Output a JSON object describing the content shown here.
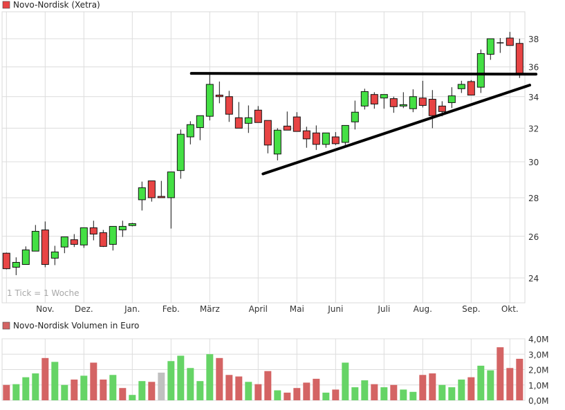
{
  "chart_data": [
    {
      "type": "candlestick",
      "title": "Novo-Nordisk (Xetra)",
      "note": "1 Tick = 1 Woche",
      "y_scale": "log",
      "ylim": [
        22.8,
        39
      ],
      "y_ticks": [
        "38",
        "36",
        "34",
        "32",
        "30",
        "28",
        "26",
        "24"
      ],
      "y_tick_values": [
        38,
        36,
        34,
        32,
        30,
        28,
        26,
        24
      ],
      "x_months": [
        {
          "label": "Nov.",
          "index": 4
        },
        {
          "label": "Dez.",
          "index": 8
        },
        {
          "label": "Jan.",
          "index": 13
        },
        {
          "label": "Feb.",
          "index": 17
        },
        {
          "label": "März",
          "index": 21
        },
        {
          "label": "April",
          "index": 26
        },
        {
          "label": "Mai",
          "index": 30
        },
        {
          "label": "Juni",
          "index": 34
        },
        {
          "label": "Juli",
          "index": 39
        },
        {
          "label": "Aug.",
          "index": 43
        },
        {
          "label": "Sep.",
          "index": 48
        },
        {
          "label": "Okt.",
          "index": 52
        }
      ],
      "colors": {
        "up": "#44e044",
        "down": "#e84444",
        "doji": "#000000",
        "legend": "#e84444"
      },
      "ohlc": [
        [
          25.17,
          25.2,
          24.4,
          24.43
        ],
        [
          24.5,
          24.97,
          24.13,
          24.73
        ],
        [
          24.63,
          25.5,
          24.63,
          25.33
        ],
        [
          25.27,
          26.57,
          25.27,
          26.25
        ],
        [
          26.32,
          26.75,
          24.5,
          24.63
        ],
        [
          24.93,
          25.53,
          24.6,
          25.23
        ],
        [
          25.47,
          25.97,
          25.17,
          25.97
        ],
        [
          25.83,
          26.11,
          25.47,
          25.6
        ],
        [
          25.57,
          26.43,
          25.43,
          26.43
        ],
        [
          26.43,
          26.79,
          25.8,
          26.11
        ],
        [
          26.18,
          26.32,
          25.47,
          25.5
        ],
        [
          25.6,
          26.5,
          25.3,
          26.5
        ],
        [
          26.32,
          26.79,
          25.97,
          26.5
        ],
        [
          26.54,
          26.68,
          26.5,
          26.64
        ],
        [
          27.89,
          28.88,
          27.32,
          28.54
        ],
        [
          28.92,
          28.92,
          27.79,
          28.0
        ],
        [
          28.07,
          28.92,
          28.0,
          28.0
        ],
        [
          28.0,
          29.42,
          26.39,
          29.42
        ],
        [
          29.5,
          31.92,
          29.04,
          31.63
        ],
        [
          31.47,
          32.43,
          31.02,
          32.22
        ],
        [
          32.04,
          32.78,
          31.27,
          32.78
        ],
        [
          32.74,
          35.52,
          32.48,
          34.81
        ],
        [
          34.1,
          35.0,
          33.57,
          34.0
        ],
        [
          34.0,
          34.38,
          32.39,
          32.87
        ],
        [
          32.65,
          33.65,
          32.0,
          32.0
        ],
        [
          32.3,
          33.43,
          31.71,
          32.65
        ],
        [
          33.13,
          33.39,
          32.35,
          32.35
        ],
        [
          32.48,
          32.48,
          30.49,
          30.98
        ],
        [
          30.45,
          32.0,
          30.08,
          31.88
        ],
        [
          32.13,
          33.04,
          31.88,
          31.88
        ],
        [
          32.7,
          33.0,
          31.8,
          31.8
        ],
        [
          31.84,
          32.09,
          30.82,
          31.35
        ],
        [
          31.71,
          32.17,
          30.69,
          31.02
        ],
        [
          31.02,
          31.71,
          30.82,
          31.71
        ],
        [
          31.47,
          31.76,
          30.98,
          31.06
        ],
        [
          31.14,
          32.17,
          30.98,
          32.17
        ],
        [
          32.39,
          33.74,
          31.92,
          33.0
        ],
        [
          33.39,
          34.52,
          33.17,
          34.33
        ],
        [
          34.14,
          34.29,
          33.22,
          33.52
        ],
        [
          33.91,
          34.14,
          33.22,
          34.14
        ],
        [
          33.87,
          34.0,
          32.96,
          33.35
        ],
        [
          33.39,
          34.29,
          33.26,
          33.48
        ],
        [
          33.22,
          34.48,
          33.0,
          34.0
        ],
        [
          33.91,
          35.05,
          33.3,
          33.43
        ],
        [
          33.83,
          34.43,
          32.0,
          32.78
        ],
        [
          33.39,
          33.7,
          32.74,
          33.04
        ],
        [
          33.61,
          34.62,
          33.26,
          34.05
        ],
        [
          34.52,
          35.05,
          34.24,
          34.81
        ],
        [
          35.0,
          35.1,
          34.1,
          34.1
        ],
        [
          34.62,
          37.22,
          34.24,
          36.93
        ],
        [
          36.88,
          38.0,
          36.49,
          38.0
        ],
        [
          37.7,
          38.05,
          36.98,
          37.7
        ],
        [
          38.05,
          38.5,
          37.51,
          37.51
        ],
        [
          37.66,
          38.0,
          35.24,
          35.52
        ]
      ],
      "trendlines": [
        {
          "name": "resistance",
          "from": {
            "index": 19.1,
            "price": 35.55
          },
          "to": {
            "index": 54.7,
            "price": 35.5
          }
        },
        {
          "name": "support",
          "from": {
            "index": 26.5,
            "price": 29.31
          },
          "to": {
            "index": 54.05,
            "price": 34.76
          }
        }
      ]
    },
    {
      "type": "bar",
      "title": "Novo-Nordisk Volumen in Euro",
      "ylim": [
        0,
        4
      ],
      "y_ticks": [
        "4,0M",
        "3,0M",
        "2,0M",
        "1,0M",
        "0,0M"
      ],
      "y_tick_values": [
        4,
        3,
        2,
        1,
        0
      ],
      "unit": "M EUR",
      "colors": {
        "r": "#d46464",
        "g": "#66d466",
        "n": "#c0c0c0",
        "legend": "#d46464"
      },
      "values": [
        1.0,
        1.05,
        1.5,
        1.75,
        2.75,
        2.5,
        1.0,
        1.35,
        1.6,
        2.45,
        1.35,
        1.65,
        0.8,
        0.35,
        1.25,
        1.2,
        1.8,
        2.55,
        2.9,
        2.1,
        1.25,
        3.0,
        2.75,
        1.65,
        1.55,
        1.2,
        1.05,
        1.9,
        0.65,
        0.5,
        0.8,
        1.15,
        1.4,
        0.5,
        0.7,
        2.45,
        0.85,
        1.3,
        1.05,
        0.85,
        1.0,
        0.7,
        0.55,
        1.65,
        1.75,
        1.0,
        0.85,
        1.35,
        1.5,
        2.25,
        1.95,
        3.45,
        2.1,
        2.7
      ],
      "bar_colors": [
        "r",
        "g",
        "g",
        "g",
        "r",
        "g",
        "g",
        "r",
        "g",
        "r",
        "r",
        "g",
        "r",
        "g",
        "g",
        "r",
        "n",
        "g",
        "g",
        "g",
        "g",
        "g",
        "r",
        "r",
        "r",
        "g",
        "r",
        "r",
        "g",
        "r",
        "r",
        "r",
        "r",
        "g",
        "r",
        "g",
        "g",
        "g",
        "r",
        "g",
        "r",
        "g",
        "g",
        "r",
        "r",
        "g",
        "g",
        "g",
        "r",
        "g",
        "g",
        "r",
        "r",
        "r"
      ]
    }
  ]
}
